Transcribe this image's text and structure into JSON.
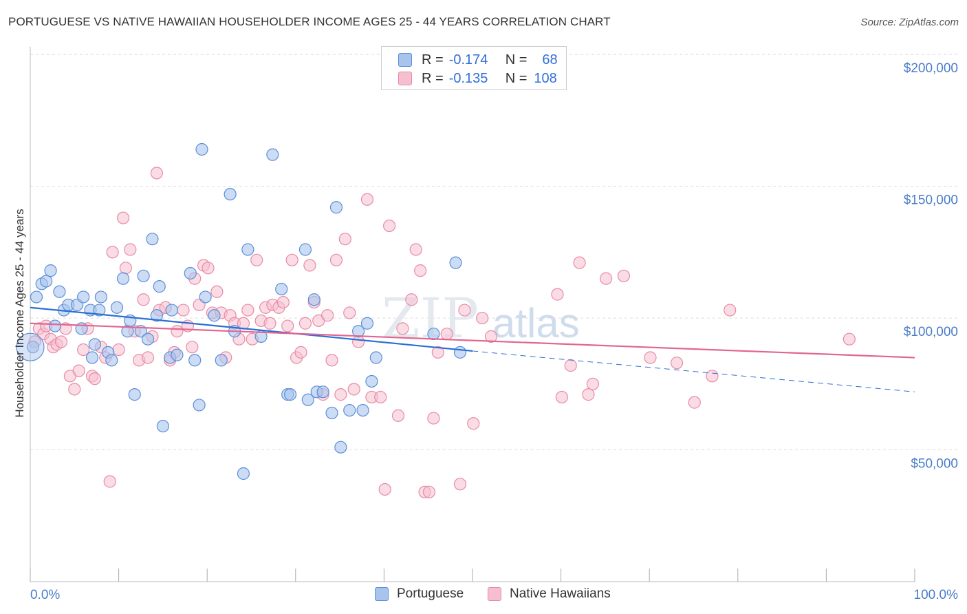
{
  "title": "PORTUGUESE VS NATIVE HAWAIIAN HOUSEHOLDER INCOME AGES 25 - 44 YEARS CORRELATION CHART",
  "source": "Source: ZipAtlas.com",
  "watermark": {
    "zip": "ZIP",
    "atlas": "atlas"
  },
  "legend": {
    "portuguese": {
      "r_label": "R =",
      "r_value": "-0.174",
      "n_label": "N =",
      "n_value": "68"
    },
    "hawaiian": {
      "r_label": "R =",
      "r_value": "-0.135",
      "n_label": "N =",
      "n_value": "108"
    }
  },
  "bottom_legend": {
    "portuguese": "Portuguese",
    "hawaiian": "Native Hawaiians"
  },
  "colors": {
    "portuguese_fill": "#a9c4ec",
    "portuguese_stroke": "#5b8fd9",
    "portuguese_line": "#2b6fd4",
    "hawaiian_fill": "#f6bfd0",
    "hawaiian_stroke": "#e98aa8",
    "hawaiian_line": "#e2668f",
    "tick_text": "#4a7cc9",
    "grid": "#dddddd"
  },
  "chart_data": {
    "type": "scatter",
    "title": "PORTUGUESE VS NATIVE HAWAIIAN HOUSEHOLDER INCOME AGES 25 - 44 YEARS CORRELATION CHART",
    "xlabel": "",
    "ylabel": "Householder Income Ages 25 - 44 years",
    "x_tick_labels": [
      "0.0%",
      "100.0%"
    ],
    "y_tick_labels": [
      "$50,000",
      "$100,000",
      "$150,000",
      "$200,000"
    ],
    "y_ticks": [
      50000,
      100000,
      150000,
      200000
    ],
    "xlim": [
      0,
      100
    ],
    "ylim": [
      0,
      205000
    ],
    "grid": true,
    "series": [
      {
        "name": "Portuguese",
        "trend": {
          "x0": 0,
          "y0": 104000,
          "x1": 50,
          "y1": 87500,
          "dashed_to_x": 100,
          "dashed_to_y": 72000
        },
        "points": [
          [
            0.3,
            89000
          ],
          [
            0.7,
            108000
          ],
          [
            1.3,
            113000
          ],
          [
            1.8,
            114000
          ],
          [
            2.3,
            118000
          ],
          [
            2.8,
            97000
          ],
          [
            3.3,
            110000
          ],
          [
            3.8,
            103000
          ],
          [
            4.3,
            105000
          ],
          [
            5.3,
            105000
          ],
          [
            5.8,
            96000
          ],
          [
            6.0,
            108000
          ],
          [
            6.8,
            103000
          ],
          [
            7.0,
            85000
          ],
          [
            7.3,
            90000
          ],
          [
            7.8,
            103000
          ],
          [
            8.0,
            108000
          ],
          [
            8.8,
            87000
          ],
          [
            9.2,
            84000
          ],
          [
            9.8,
            104000
          ],
          [
            10.5,
            115000
          ],
          [
            11.0,
            95000
          ],
          [
            11.3,
            99000
          ],
          [
            11.8,
            71000
          ],
          [
            12.5,
            95000
          ],
          [
            12.8,
            116000
          ],
          [
            13.3,
            92000
          ],
          [
            13.8,
            130000
          ],
          [
            14.3,
            101000
          ],
          [
            14.6,
            112000
          ],
          [
            15.0,
            59000
          ],
          [
            15.8,
            85000
          ],
          [
            16.0,
            103000
          ],
          [
            16.6,
            86000
          ],
          [
            18.1,
            117000
          ],
          [
            18.6,
            84000
          ],
          [
            19.1,
            67000
          ],
          [
            19.4,
            164000
          ],
          [
            19.8,
            108000
          ],
          [
            20.8,
            101000
          ],
          [
            21.6,
            84000
          ],
          [
            22.6,
            147000
          ],
          [
            23.1,
            95000
          ],
          [
            24.1,
            41000
          ],
          [
            24.6,
            126000
          ],
          [
            26.1,
            93000
          ],
          [
            27.4,
            162000
          ],
          [
            28.4,
            111000
          ],
          [
            29.1,
            71000
          ],
          [
            29.4,
            71000
          ],
          [
            31.1,
            126000
          ],
          [
            31.4,
            69000
          ],
          [
            32.1,
            107000
          ],
          [
            32.4,
            72000
          ],
          [
            33.1,
            72000
          ],
          [
            34.1,
            64000
          ],
          [
            34.6,
            142000
          ],
          [
            35.1,
            51000
          ],
          [
            36.1,
            65000
          ],
          [
            37.1,
            95000
          ],
          [
            37.6,
            65000
          ],
          [
            38.1,
            98000
          ],
          [
            38.6,
            76000
          ],
          [
            39.1,
            85000
          ],
          [
            45.6,
            94000
          ],
          [
            48.1,
            121000
          ],
          [
            48.6,
            87000
          ],
          [
            0.0,
            89000
          ]
        ]
      },
      {
        "name": "Native Hawaiians",
        "trend": {
          "x0": 0,
          "y0": 98000,
          "x1": 100,
          "y1": 85000
        },
        "points": [
          [
            0.5,
            91000
          ],
          [
            1.0,
            96000
          ],
          [
            1.5,
            94000
          ],
          [
            1.8,
            97000
          ],
          [
            2.3,
            92000
          ],
          [
            2.6,
            89000
          ],
          [
            3.0,
            90000
          ],
          [
            3.5,
            91000
          ],
          [
            4.0,
            96000
          ],
          [
            4.5,
            78000
          ],
          [
            5.0,
            73000
          ],
          [
            5.5,
            80000
          ],
          [
            6.0,
            88000
          ],
          [
            6.5,
            96000
          ],
          [
            7.0,
            78000
          ],
          [
            7.3,
            77000
          ],
          [
            8.0,
            89000
          ],
          [
            8.5,
            85000
          ],
          [
            9.0,
            38000
          ],
          [
            9.3,
            125000
          ],
          [
            10.0,
            88000
          ],
          [
            10.5,
            138000
          ],
          [
            10.8,
            119000
          ],
          [
            11.3,
            126000
          ],
          [
            11.8,
            95000
          ],
          [
            12.3,
            84000
          ],
          [
            12.8,
            107000
          ],
          [
            13.3,
            85000
          ],
          [
            13.8,
            93000
          ],
          [
            14.3,
            155000
          ],
          [
            14.6,
            103000
          ],
          [
            15.3,
            104000
          ],
          [
            15.8,
            84000
          ],
          [
            16.3,
            87000
          ],
          [
            16.6,
            95000
          ],
          [
            17.3,
            103000
          ],
          [
            17.8,
            97000
          ],
          [
            18.3,
            89000
          ],
          [
            18.6,
            115000
          ],
          [
            19.1,
            105000
          ],
          [
            19.6,
            120000
          ],
          [
            20.1,
            119000
          ],
          [
            20.6,
            102000
          ],
          [
            21.1,
            110000
          ],
          [
            21.6,
            102000
          ],
          [
            22.1,
            85000
          ],
          [
            22.6,
            101000
          ],
          [
            23.1,
            98000
          ],
          [
            23.6,
            92000
          ],
          [
            24.1,
            98000
          ],
          [
            24.6,
            103000
          ],
          [
            25.1,
            92000
          ],
          [
            25.6,
            122000
          ],
          [
            26.1,
            99000
          ],
          [
            26.6,
            104000
          ],
          [
            27.1,
            98000
          ],
          [
            27.4,
            105000
          ],
          [
            28.1,
            104000
          ],
          [
            28.6,
            106000
          ],
          [
            29.1,
            97000
          ],
          [
            29.6,
            122000
          ],
          [
            30.1,
            85000
          ],
          [
            30.6,
            87000
          ],
          [
            31.1,
            98000
          ],
          [
            31.6,
            120000
          ],
          [
            32.1,
            106000
          ],
          [
            32.6,
            99000
          ],
          [
            33.1,
            71000
          ],
          [
            33.6,
            101000
          ],
          [
            34.1,
            84000
          ],
          [
            34.6,
            122000
          ],
          [
            35.1,
            71000
          ],
          [
            35.6,
            130000
          ],
          [
            36.1,
            102000
          ],
          [
            36.6,
            73000
          ],
          [
            37.1,
            91000
          ],
          [
            38.1,
            145000
          ],
          [
            38.6,
            70000
          ],
          [
            39.6,
            70000
          ],
          [
            40.1,
            35000
          ],
          [
            40.6,
            135000
          ],
          [
            41.6,
            63000
          ],
          [
            42.1,
            96000
          ],
          [
            43.1,
            107000
          ],
          [
            43.6,
            126000
          ],
          [
            44.1,
            118000
          ],
          [
            44.6,
            34000
          ],
          [
            45.1,
            34000
          ],
          [
            45.6,
            62000
          ],
          [
            46.1,
            87000
          ],
          [
            47.1,
            94000
          ],
          [
            48.6,
            37000
          ],
          [
            49.1,
            103000
          ],
          [
            50.1,
            60000
          ],
          [
            51.1,
            100000
          ],
          [
            52.1,
            93000
          ],
          [
            59.6,
            109000
          ],
          [
            60.1,
            70000
          ],
          [
            61.1,
            82000
          ],
          [
            62.1,
            121000
          ],
          [
            63.1,
            71000
          ],
          [
            63.6,
            75000
          ],
          [
            65.1,
            115000
          ],
          [
            67.1,
            116000
          ],
          [
            70.1,
            85000
          ],
          [
            73.1,
            83000
          ],
          [
            75.1,
            68000
          ],
          [
            77.1,
            78000
          ],
          [
            79.1,
            103000
          ],
          [
            92.6,
            92000
          ]
        ]
      }
    ]
  }
}
